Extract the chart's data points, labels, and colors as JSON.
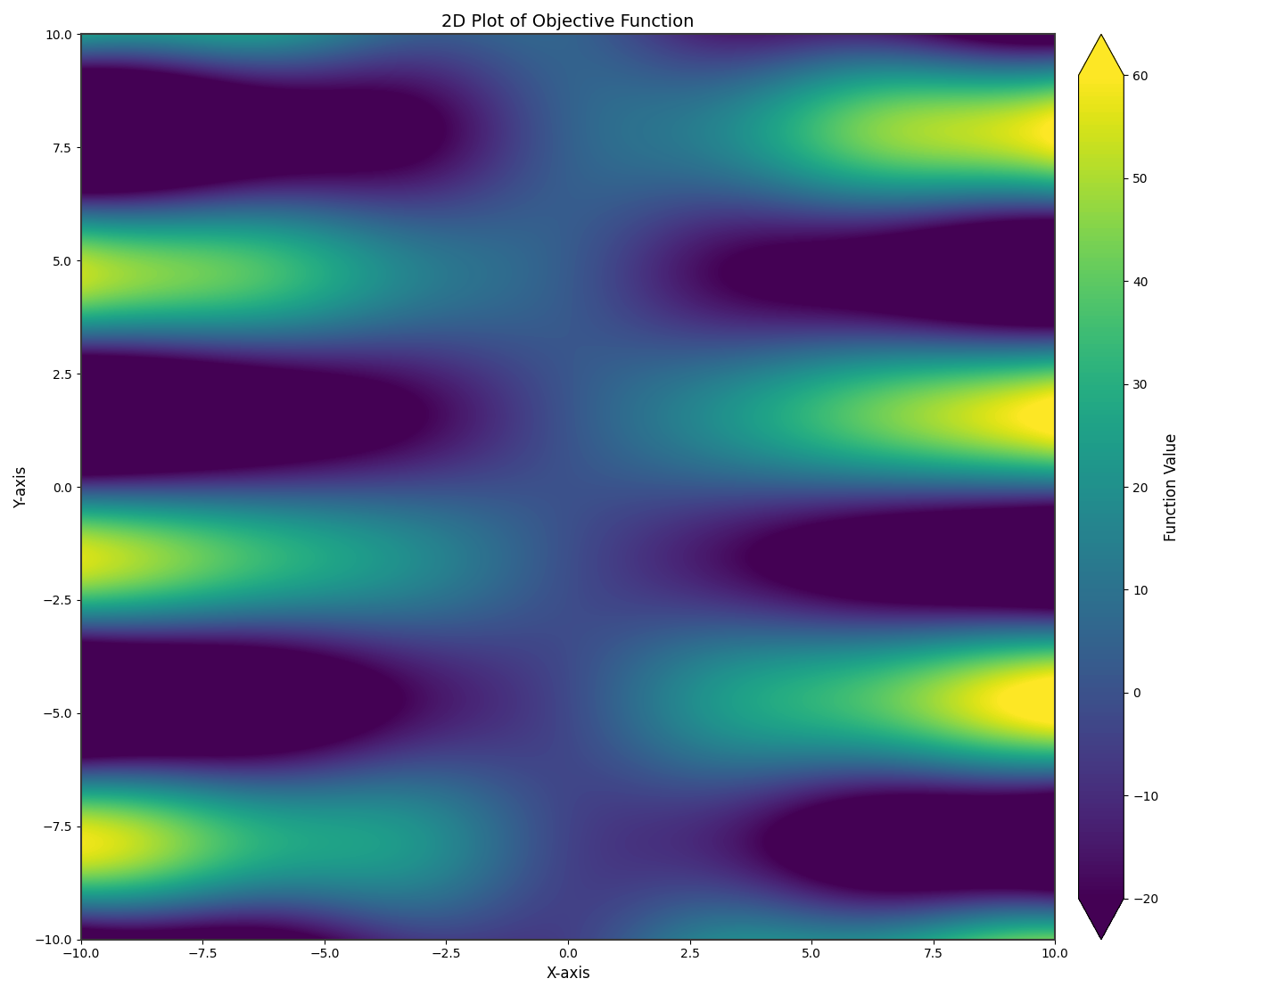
{
  "title": "2D Plot of Objective Function",
  "xlabel": "X-axis",
  "ylabel": "Y-axis",
  "colorbar_label": "Function Value",
  "xlim": [
    -10,
    10
  ],
  "ylim": [
    -10,
    10
  ],
  "x_ticks": [
    -10.0,
    -7.5,
    -5.0,
    -2.5,
    0.0,
    2.5,
    5.0,
    7.5,
    10.0
  ],
  "y_ticks": [
    -10.0,
    -7.5,
    -5.0,
    -2.5,
    0.0,
    2.5,
    5.0,
    7.5,
    10.0
  ],
  "colormap": "viridis",
  "vmin": -20,
  "vmax": 60,
  "colorbar_ticks": [
    -20,
    -10,
    0,
    10,
    20,
    30,
    40,
    50,
    60
  ],
  "n_levels": 200,
  "grid_points": 500,
  "figure_facecolor": "#ffffff",
  "border_color": "#3a3a3a"
}
